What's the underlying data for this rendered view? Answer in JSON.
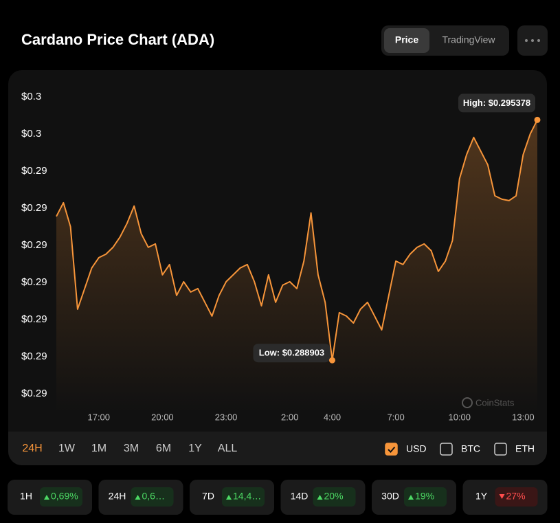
{
  "header": {
    "title": "Cardano Price Chart (ADA)",
    "tabs": [
      "Price",
      "TradingView"
    ],
    "active_tab": 0
  },
  "chart_data": {
    "type": "line",
    "x": [
      "15:00",
      "15:20",
      "15:40",
      "16:00",
      "16:20",
      "16:40",
      "17:00",
      "17:20",
      "17:40",
      "18:00",
      "18:20",
      "18:40",
      "19:00",
      "19:20",
      "19:40",
      "20:00",
      "20:20",
      "20:40",
      "21:00",
      "21:20",
      "21:40",
      "22:00",
      "22:20",
      "22:40",
      "23:00",
      "23:20",
      "23:40",
      "00:00",
      "00:20",
      "00:40",
      "01:00",
      "01:20",
      "01:40",
      "02:00",
      "02:20",
      "02:40",
      "03:00",
      "03:20",
      "03:40",
      "04:00",
      "04:20",
      "04:40",
      "05:00",
      "05:20",
      "05:40",
      "06:00",
      "06:20",
      "06:40",
      "07:00",
      "07:20",
      "07:40",
      "08:00",
      "08:20",
      "08:40",
      "09:00",
      "09:20",
      "09:40",
      "10:00",
      "10:20",
      "10:40",
      "11:00",
      "11:20",
      "11:40",
      "12:00",
      "12:20",
      "12:40",
      "13:00",
      "13:20",
      "13:40"
    ],
    "series": [
      {
        "name": "ADA",
        "color": "#f7953a",
        "values": [
          0.292778,
          0.293148,
          0.2925,
          0.290278,
          0.290833,
          0.291389,
          0.291667,
          0.291759,
          0.291944,
          0.292222,
          0.292593,
          0.293056,
          0.292315,
          0.291944,
          0.292037,
          0.291204,
          0.291481,
          0.290648,
          0.291019,
          0.290741,
          0.290833,
          0.290463,
          0.290093,
          0.290648,
          0.291019,
          0.291204,
          0.291389,
          0.291481,
          0.291019,
          0.29037,
          0.291204,
          0.290463,
          0.290926,
          0.291019,
          0.290833,
          0.291574,
          0.29287,
          0.291204,
          0.290463,
          0.288903,
          0.290185,
          0.290093,
          0.289907,
          0.290278,
          0.290463,
          0.290093,
          0.289722,
          0.290648,
          0.291574,
          0.291481,
          0.291759,
          0.291944,
          0.292037,
          0.291852,
          0.291296,
          0.291574,
          0.29213,
          0.293796,
          0.294444,
          0.294907,
          0.294537,
          0.294167,
          0.293333,
          0.293241,
          0.293204,
          0.293333,
          0.294444,
          0.295,
          0.295378
        ]
      }
    ],
    "xlim": [
      "15:00",
      "13:40"
    ],
    "xticks": [
      "17:00",
      "20:00",
      "23:00",
      "2:00",
      "4:00",
      "7:00",
      "10:00",
      "13:00"
    ],
    "ylim": [
      0.2875,
      0.2962
    ],
    "yticks": [
      {
        "value": 0.288,
        "label": "$0.29"
      },
      {
        "value": 0.289,
        "label": "$0.29"
      },
      {
        "value": 0.29,
        "label": "$0.29"
      },
      {
        "value": 0.291,
        "label": "$0.29"
      },
      {
        "value": 0.292,
        "label": "$0.29"
      },
      {
        "value": 0.293,
        "label": "$0.29"
      },
      {
        "value": 0.294,
        "label": "$0.29"
      },
      {
        "value": 0.295,
        "label": "$0.3"
      },
      {
        "value": 0.296,
        "label": "$0.3"
      }
    ],
    "annotations": {
      "low": "Low: $0.288903",
      "high": "High: $0.295378"
    },
    "watermark": "CoinStats"
  },
  "ranges": {
    "items": [
      "24H",
      "1W",
      "1M",
      "3M",
      "6M",
      "1Y",
      "ALL"
    ],
    "active": 0
  },
  "currencies": {
    "items": [
      "USD",
      "BTC",
      "ETH"
    ],
    "checked": [
      true,
      false,
      false
    ]
  },
  "stats": [
    {
      "period": "1H",
      "change": "0,69%",
      "trend": "up"
    },
    {
      "period": "24H",
      "change": "0,6…",
      "trend": "up"
    },
    {
      "period": "7D",
      "change": "14,4…",
      "trend": "up"
    },
    {
      "period": "14D",
      "change": "20%",
      "trend": "up"
    },
    {
      "period": "30D",
      "change": "19%",
      "trend": "up"
    },
    {
      "period": "1Y",
      "change": "27%",
      "trend": "down"
    }
  ]
}
